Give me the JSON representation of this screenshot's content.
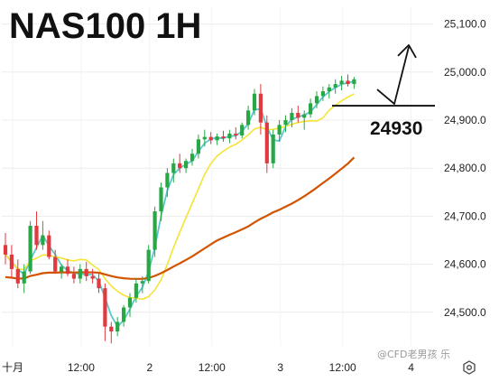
{
  "chart_data": {
    "type": "candlestick",
    "title": "NAS100 1H",
    "y_axis": {
      "position": "right",
      "ticks": [
        "25,100.0",
        "25,000.0",
        "24,900.0",
        "24,800.0",
        "24,700.0",
        "24,600.0",
        "24,500.0"
      ],
      "tick_values": [
        25100,
        25000,
        24900,
        24800,
        24700,
        24600,
        24500
      ],
      "range": [
        24430,
        25135
      ]
    },
    "x_axis": {
      "ticks": [
        "十月",
        "12:00",
        "2",
        "12:00",
        "3",
        "12:00",
        "4"
      ]
    },
    "grid": true,
    "colors": {
      "up": "#28a745",
      "down": "#e0393e",
      "ma_fast": "#5bc8cf",
      "ma_mid": "#f3e437",
      "ma_slow": "#d35400",
      "annotation": "#111111"
    },
    "candles": [
      [
        24640,
        24665,
        24600,
        24620
      ],
      [
        24620,
        24640,
        24570,
        24590
      ],
      [
        24590,
        24610,
        24550,
        24560
      ],
      [
        24560,
        24600,
        24540,
        24585
      ],
      [
        24585,
        24690,
        24580,
        24680
      ],
      [
        24680,
        24710,
        24630,
        24640
      ],
      [
        24640,
        24690,
        24630,
        24660
      ],
      [
        24660,
        24670,
        24610,
        24615
      ],
      [
        24615,
        24630,
        24580,
        24585
      ],
      [
        24585,
        24600,
        24570,
        24595
      ],
      [
        24595,
        24610,
        24575,
        24580
      ],
      [
        24580,
        24595,
        24560,
        24570
      ],
      [
        24570,
        24600,
        24560,
        24590
      ],
      [
        24590,
        24605,
        24565,
        24575
      ],
      [
        24575,
        24590,
        24560,
        24570
      ],
      [
        24570,
        24580,
        24540,
        24550
      ],
      [
        24550,
        24560,
        24440,
        24470
      ],
      [
        24470,
        24480,
        24435,
        24460
      ],
      [
        24460,
        24490,
        24450,
        24480
      ],
      [
        24480,
        24515,
        24470,
        24510
      ],
      [
        24510,
        24540,
        24490,
        24530
      ],
      [
        24530,
        24570,
        24520,
        24560
      ],
      [
        24560,
        24575,
        24540,
        24565
      ],
      [
        24565,
        24640,
        24560,
        24630
      ],
      [
        24630,
        24720,
        24615,
        24710
      ],
      [
        24710,
        24770,
        24690,
        24760
      ],
      [
        24760,
        24800,
        24740,
        24790
      ],
      [
        24790,
        24820,
        24770,
        24810
      ],
      [
        24810,
        24830,
        24790,
        24800
      ],
      [
        24800,
        24820,
        24790,
        24815
      ],
      [
        24815,
        24840,
        24805,
        24830
      ],
      [
        24830,
        24870,
        24820,
        24860
      ],
      [
        24860,
        24880,
        24845,
        24865
      ],
      [
        24865,
        24875,
        24850,
        24858
      ],
      [
        24858,
        24872,
        24848,
        24866
      ],
      [
        24866,
        24878,
        24855,
        24862
      ],
      [
        24862,
        24880,
        24852,
        24872
      ],
      [
        24872,
        24885,
        24860,
        24868
      ],
      [
        24868,
        24895,
        24862,
        24890
      ],
      [
        24890,
        24930,
        24880,
        24920
      ],
      [
        24920,
        24965,
        24910,
        24955
      ],
      [
        24955,
        24975,
        24870,
        24895
      ],
      [
        24895,
        24910,
        24790,
        24810
      ],
      [
        24810,
        24880,
        24800,
        24870
      ],
      [
        24870,
        24900,
        24855,
        24890
      ],
      [
        24890,
        24910,
        24875,
        24900
      ],
      [
        24900,
        24925,
        24885,
        24915
      ],
      [
        24915,
        24930,
        24895,
        24905
      ],
      [
        24905,
        24920,
        24880,
        24912
      ],
      [
        24912,
        24945,
        24905,
        24935
      ],
      [
        24935,
        24960,
        24925,
        24950
      ],
      [
        24950,
        24970,
        24940,
        24960
      ],
      [
        24960,
        24975,
        24945,
        24968
      ],
      [
        24968,
        24985,
        24955,
        24975
      ],
      [
        24975,
        24992,
        24962,
        24982
      ],
      [
        24982,
        24995,
        24970,
        24975
      ],
      [
        24975,
        24990,
        24965,
        24985
      ]
    ],
    "annotation": {
      "level_label": "24930",
      "level_value": 24930,
      "projection_target": 25060
    }
  },
  "watermark": "@CFD老男孩 乐",
  "settings_icon": "gear-icon"
}
